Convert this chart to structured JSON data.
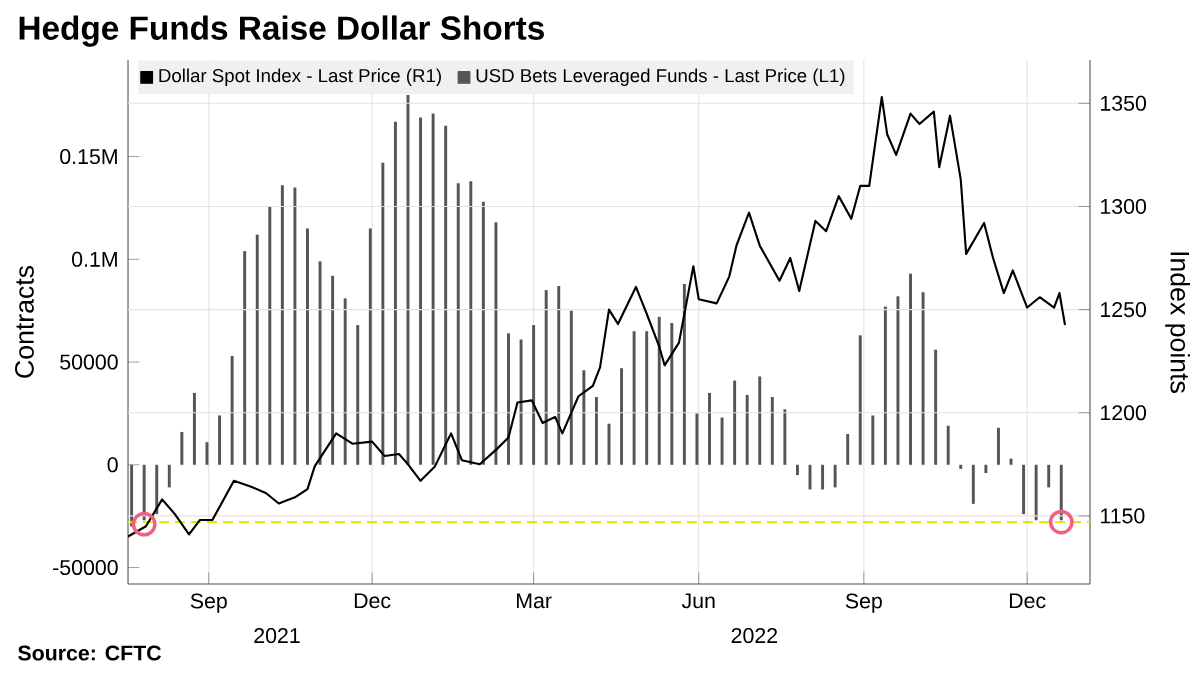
{
  "chart_data": {
    "type": "bar",
    "title": "Hedge Funds Raise Dollar Shorts",
    "ylabel": "Contracts",
    "y2label": "Index points",
    "annotations": [
      "2021",
      "2022",
      "Source: CFTC"
    ],
    "xlim": [
      "2021-07-18",
      "2023-01-05"
    ],
    "xticks": [
      {
        "value": "2021-09-01",
        "label": "Sep"
      },
      {
        "value": "2021-12-01",
        "label": "Dec"
      },
      {
        "value": "2022-03-01",
        "label": "Mar"
      },
      {
        "value": "2022-06-01",
        "label": "Jun"
      },
      {
        "value": "2022-09-01",
        "label": "Sep"
      },
      {
        "value": "2022-12-01",
        "label": "Dec"
      }
    ],
    "ylim": [
      -58000,
      197000
    ],
    "yticks": [
      -50000,
      0,
      50000,
      {
        "value": 100000,
        "label": "0.1M"
      },
      {
        "value": 150000,
        "label": "0.15M"
      }
    ],
    "y2lim": [
      1117,
      1371
    ],
    "y2ticks": [
      1150,
      1200,
      1250,
      1300,
      1350
    ],
    "grid": true,
    "legend": "top left",
    "ref_lines": [
      {
        "axis": "y2",
        "value": 1147,
        "color": "#e6e600",
        "line_style": "dashed"
      }
    ],
    "series": [
      {
        "name": "Dollar Spot Index - Last Price (R1)",
        "type": "line",
        "axis": "y2",
        "color": "#000000",
        "x": [
          "2021-07-18",
          "2021-07-28",
          "2021-08-06",
          "2021-08-13",
          "2021-08-21",
          "2021-08-27",
          "2021-09-03",
          "2021-09-15",
          "2021-09-25",
          "2021-10-03",
          "2021-10-10",
          "2021-10-19",
          "2021-10-26",
          "2021-10-30",
          "2021-11-11",
          "2021-11-20",
          "2021-12-01",
          "2021-12-08",
          "2021-12-16",
          "2021-12-21",
          "2021-12-28",
          "2022-01-05",
          "2022-01-14",
          "2022-01-20",
          "2022-01-30",
          "2022-02-08",
          "2022-02-15",
          "2022-02-20",
          "2022-02-28",
          "2022-03-06",
          "2022-03-13",
          "2022-03-17",
          "2022-03-26",
          "2022-04-03",
          "2022-04-07",
          "2022-04-12",
          "2022-04-17",
          "2022-04-27",
          "2022-05-03",
          "2022-05-10",
          "2022-05-13",
          "2022-05-21",
          "2022-05-29",
          "2022-06-01",
          "2022-06-11",
          "2022-06-18",
          "2022-06-22",
          "2022-06-29",
          "2022-07-05",
          "2022-07-16",
          "2022-07-22",
          "2022-07-27",
          "2022-08-05",
          "2022-08-11",
          "2022-08-18",
          "2022-08-25",
          "2022-08-30",
          "2022-09-04",
          "2022-09-11",
          "2022-09-14",
          "2022-09-19",
          "2022-09-27",
          "2022-10-02",
          "2022-10-10",
          "2022-10-13",
          "2022-10-19",
          "2022-10-25",
          "2022-10-28",
          "2022-11-07",
          "2022-11-12",
          "2022-11-18",
          "2022-11-23",
          "2022-12-01",
          "2022-12-08",
          "2022-12-16",
          "2022-12-19",
          "2022-12-22"
        ],
        "values": [
          1140,
          1145,
          1158,
          1151,
          1141,
          1148,
          1148,
          1167,
          1164,
          1161,
          1156,
          1159,
          1163,
          1174,
          1190,
          1185,
          1186,
          1179,
          1180,
          1175,
          1167,
          1174,
          1190,
          1177,
          1175,
          1182,
          1188,
          1205,
          1206,
          1195,
          1198,
          1190,
          1208,
          1213,
          1222,
          1250,
          1243,
          1261,
          1248,
          1232,
          1223,
          1234,
          1271,
          1255,
          1253,
          1266,
          1281,
          1297,
          1281,
          1264,
          1275,
          1259,
          1293,
          1288,
          1305,
          1294,
          1310,
          1310,
          1353,
          1335,
          1325,
          1345,
          1340,
          1346,
          1319,
          1344,
          1313,
          1277,
          1292,
          1275,
          1258,
          1269,
          1251,
          1256,
          1251,
          1258,
          1243
        ]
      },
      {
        "name": "USD Bets Leveraged Funds - Last Price (L1)",
        "color": "#555555",
        "x": [
          "2021-07-20",
          "2021-07-27",
          "2021-08-03",
          "2021-08-10",
          "2021-08-17",
          "2021-08-24",
          "2021-08-31",
          "2021-09-07",
          "2021-09-14",
          "2021-09-21",
          "2021-09-28",
          "2021-10-05",
          "2021-10-12",
          "2021-10-19",
          "2021-10-26",
          "2021-11-02",
          "2021-11-09",
          "2021-11-16",
          "2021-11-23",
          "2021-11-30",
          "2021-12-07",
          "2021-12-14",
          "2021-12-21",
          "2021-12-28",
          "2022-01-04",
          "2022-01-11",
          "2022-01-18",
          "2022-01-25",
          "2022-02-01",
          "2022-02-08",
          "2022-02-15",
          "2022-02-22",
          "2022-03-01",
          "2022-03-08",
          "2022-03-15",
          "2022-03-22",
          "2022-03-29",
          "2022-04-05",
          "2022-04-12",
          "2022-04-19",
          "2022-04-26",
          "2022-05-03",
          "2022-05-10",
          "2022-05-17",
          "2022-05-24",
          "2022-05-31",
          "2022-06-07",
          "2022-06-14",
          "2022-06-21",
          "2022-06-28",
          "2022-07-05",
          "2022-07-12",
          "2022-07-19",
          "2022-07-26",
          "2022-08-02",
          "2022-08-09",
          "2022-08-16",
          "2022-08-23",
          "2022-08-30",
          "2022-09-06",
          "2022-09-13",
          "2022-09-20",
          "2022-09-27",
          "2022-10-04",
          "2022-10-11",
          "2022-10-18",
          "2022-10-25",
          "2022-11-01",
          "2022-11-08",
          "2022-11-15",
          "2022-11-22",
          "2022-11-29",
          "2022-12-06",
          "2022-12-13",
          "2022-12-20"
        ],
        "values": [
          -30000,
          -27000,
          -24000,
          -11000,
          16000,
          35000,
          11000,
          24000,
          53000,
          104000,
          112000,
          126000,
          136000,
          135000,
          115000,
          99000,
          92000,
          81000,
          68000,
          115000,
          147000,
          167000,
          180000,
          169000,
          171000,
          165000,
          137000,
          138000,
          128000,
          118000,
          64000,
          61000,
          68000,
          85000,
          87000,
          75000,
          46000,
          33000,
          20000,
          47000,
          65000,
          65000,
          72000,
          69000,
          88000,
          25000,
          35000,
          23000,
          41000,
          34000,
          43000,
          33000,
          27000,
          -5000,
          -12000,
          -12000,
          -11000,
          15000,
          63000,
          24000,
          77000,
          82000,
          93000,
          84000,
          56000,
          19000,
          -2000,
          -19000,
          -4000,
          18000,
          3000,
          -24000,
          -27000,
          -11000,
          -27000
        ]
      },
      {
        "type": "scatter",
        "axis": "y2",
        "color": "#f06080",
        "marker": "circle",
        "x": [
          "2021-07-27",
          "2022-12-20"
        ],
        "values": [
          1146,
          1147
        ]
      }
    ]
  }
}
